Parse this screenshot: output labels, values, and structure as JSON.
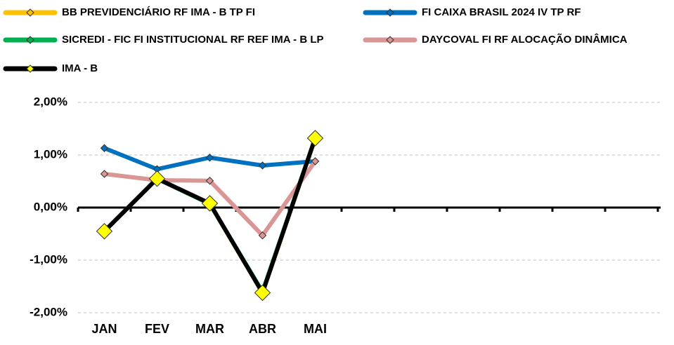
{
  "chart_data": {
    "type": "line",
    "categories": [
      "JAN",
      "FEV",
      "MAR",
      "ABR",
      "MAI",
      null,
      null,
      null,
      null,
      null,
      null
    ],
    "series": [
      {
        "name": "BB PREVIDENCIÁRIO RF IMA - B TP FI",
        "color": "#ffc000",
        "values": [
          -0.45,
          0.55,
          0.07,
          -1.62,
          1.32,
          null,
          null,
          null,
          null,
          null,
          null
        ]
      },
      {
        "name": "FI CAIXA BRASIL 2024 IV TP RF",
        "color": "#0070c0",
        "values": [
          1.13,
          0.73,
          0.95,
          0.8,
          0.88,
          null,
          null,
          null,
          null,
          null,
          null
        ]
      },
      {
        "name": "SICREDI - FIC FI INSTITUCIONAL RF REF IMA - B LP",
        "color": "#00b050",
        "values": [
          -0.45,
          0.55,
          0.07,
          -1.6,
          1.32,
          null,
          null,
          null,
          null,
          null,
          null
        ]
      },
      {
        "name": "DAYCOVAL FI RF ALOCAÇÃO DINÂMICA",
        "color": "#d99694",
        "values": [
          0.64,
          0.52,
          0.51,
          -0.53,
          0.88,
          null,
          null,
          null,
          null,
          null,
          null
        ]
      },
      {
        "name": "IMA - B",
        "color": "#000000",
        "marker_color": "#ffff00",
        "values": [
          -0.45,
          0.55,
          0.08,
          -1.62,
          1.32,
          null,
          null,
          null,
          null,
          null,
          null
        ]
      }
    ],
    "ylim": [
      -2,
      2
    ],
    "yticks": [
      {
        "value": -2,
        "label": "-2,00%"
      },
      {
        "value": -1,
        "label": "-1,00%"
      },
      {
        "value": 0,
        "label": "0,00%"
      },
      {
        "value": 1,
        "label": "1,00%"
      },
      {
        "value": 2,
        "label": "2,00%"
      }
    ],
    "grid": true
  }
}
